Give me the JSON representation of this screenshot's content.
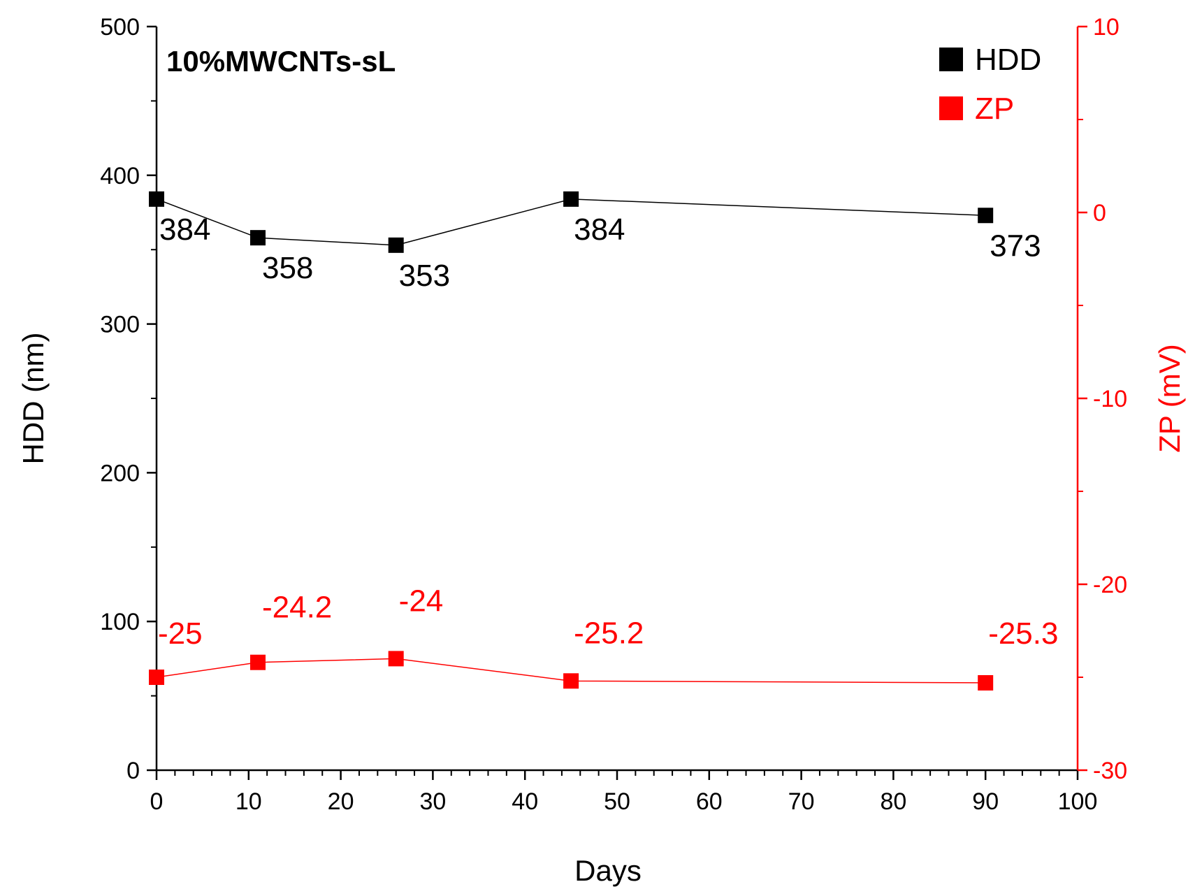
{
  "chart_data": {
    "type": "line",
    "title": "10%MWCNTs-sL",
    "xlabel": "Days",
    "ylabel_left": "HDD (nm)",
    "ylabel_right": "ZP (mV)",
    "xlim": [
      0,
      100
    ],
    "ylim_left": [
      0,
      500
    ],
    "ylim_right": [
      -30,
      10
    ],
    "x_ticks": [
      "0",
      "10",
      "20",
      "30",
      "40",
      "50",
      "60",
      "70",
      "80",
      "90",
      "100"
    ],
    "y_left_ticks": [
      "0",
      "100",
      "200",
      "300",
      "400",
      "500"
    ],
    "y_right_ticks": [
      "-30",
      "-20",
      "-10",
      "0",
      "10"
    ],
    "legend_position": "top-right",
    "colors": {
      "hdd": "#000000",
      "zp": "#ff0000"
    },
    "series": [
      {
        "name": "HDD",
        "axis": "left",
        "x": [
          0,
          11,
          26,
          45,
          90
        ],
        "values": [
          384,
          358,
          353,
          384,
          373
        ],
        "labels": [
          "384",
          "358",
          "353",
          "384",
          "373"
        ]
      },
      {
        "name": "ZP",
        "axis": "right",
        "x": [
          0,
          11,
          26,
          45,
          90
        ],
        "values": [
          -25,
          -24.2,
          -24,
          -25.2,
          -25.3
        ],
        "labels": [
          "-25",
          "-24.2",
          "-24",
          "-25.2",
          "-25.3"
        ]
      }
    ]
  }
}
